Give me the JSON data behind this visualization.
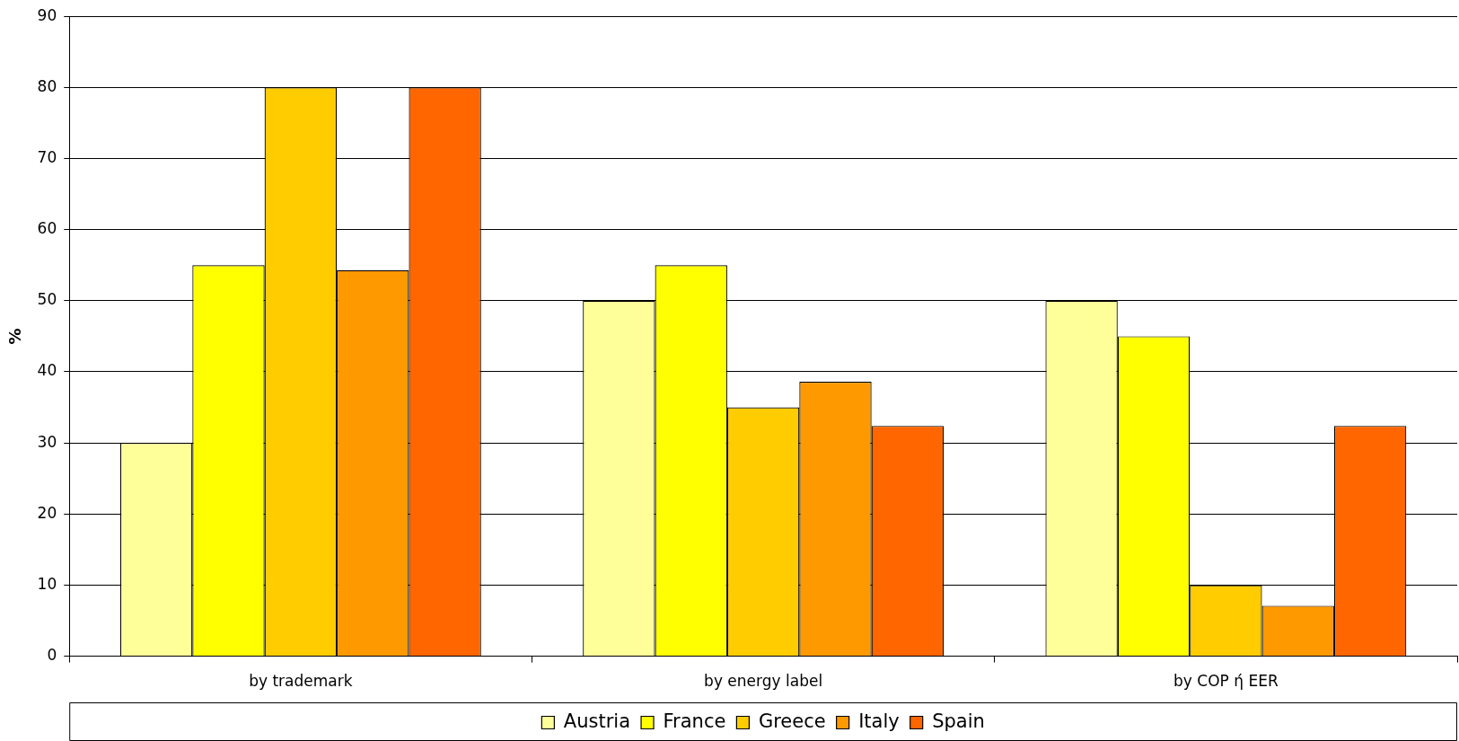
{
  "chart_data": {
    "type": "bar",
    "ylabel": "%",
    "categories": [
      "by trademark",
      "by energy label",
      "by COP ή EER"
    ],
    "series": [
      {
        "name": "Austria",
        "color": "#ffff99",
        "values": [
          30,
          50,
          50
        ]
      },
      {
        "name": "France",
        "color": "#ffff00",
        "values": [
          55,
          55,
          45
        ]
      },
      {
        "name": "Greece",
        "color": "#ffcc00",
        "values": [
          80,
          35,
          10
        ]
      },
      {
        "name": "Italy",
        "color": "#ff9900",
        "values": [
          54.3,
          38.6,
          7.1
        ]
      },
      {
        "name": "Spain",
        "color": "#ff6600",
        "values": [
          80,
          32.4,
          32.4
        ]
      }
    ],
    "ylim": [
      0,
      90
    ],
    "yticks": [
      0,
      10,
      20,
      30,
      40,
      50,
      60,
      70,
      80,
      90
    ],
    "grid": "y",
    "legend": "bottom"
  }
}
